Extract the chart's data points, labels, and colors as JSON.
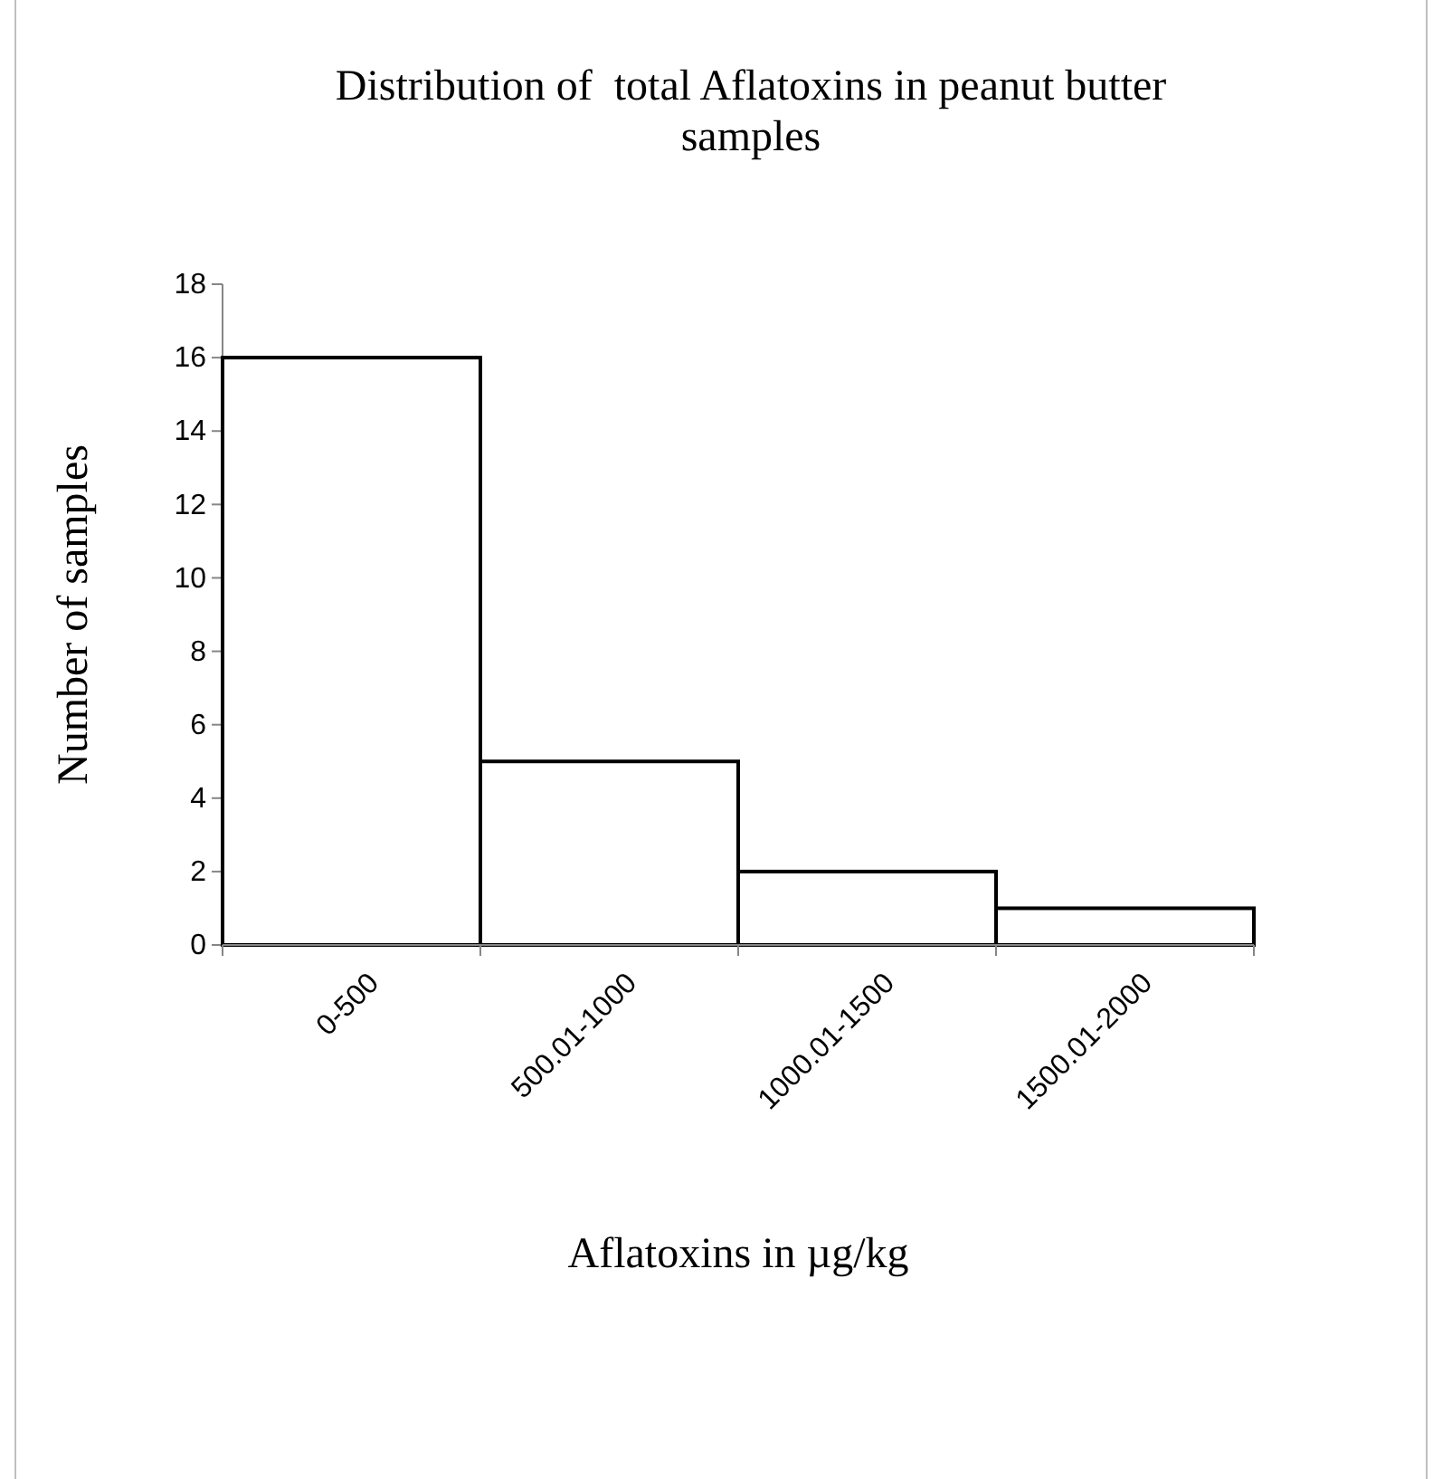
{
  "chart_data": {
    "type": "bar",
    "title": "Distribution of  total Aflatoxins in peanut butter samples",
    "xlabel": "Aflatoxins in µg/kg",
    "ylabel": "Number of samples",
    "categories": [
      "0-500",
      "500.01-1000",
      "1000.01-1500",
      "1500.01-2000"
    ],
    "series": [
      {
        "color": "#ffffff",
        "values": [
          16,
          5,
          2,
          1
        ]
      }
    ],
    "ylim": [
      0,
      18
    ],
    "yticks": [
      0,
      2,
      4,
      6,
      8,
      10,
      12,
      14,
      16,
      18
    ],
    "grid": false
  }
}
